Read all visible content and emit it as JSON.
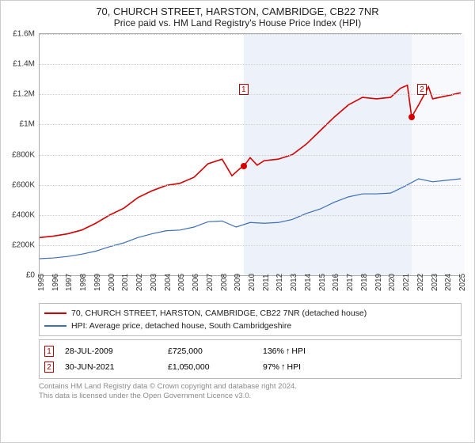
{
  "titles": {
    "line1": "70, CHURCH STREET, HARSTON, CAMBRIDGE, CB22 7NR",
    "line2": "Price paid vs. HM Land Registry's House Price Index (HPI)"
  },
  "chart": {
    "type": "line",
    "background_color": "#ffffff",
    "grid_color": "#d0d0d0",
    "shade_primary_color": "#ecf1fa",
    "shade_secondary_color": "#f7f9fd",
    "y": {
      "min": 0,
      "max": 1600000,
      "step": 200000,
      "labels": [
        "£0",
        "£200K",
        "£400K",
        "£600K",
        "£800K",
        "£1M",
        "£1.2M",
        "£1.4M",
        "£1.6M"
      ]
    },
    "x": {
      "min": 1995,
      "max": 2025,
      "labels": [
        "1995",
        "1996",
        "1997",
        "1998",
        "1999",
        "2000",
        "2001",
        "2002",
        "2003",
        "2004",
        "2005",
        "2006",
        "2007",
        "2008",
        "2009",
        "2010",
        "2011",
        "2012",
        "2013",
        "2014",
        "2015",
        "2016",
        "2017",
        "2018",
        "2019",
        "2020",
        "2021",
        "2022",
        "2023",
        "2024",
        "2025"
      ]
    },
    "shade_bands": [
      {
        "from": 2009.56,
        "to": 2021.5,
        "style": "primary"
      },
      {
        "from": 2021.5,
        "to": 2025.3,
        "style": "secondary"
      }
    ],
    "series": [
      {
        "name": "70, CHURCH STREET, HARSTON, CAMBRIDGE, CB22 7NR (detached house)",
        "color": "#d40000",
        "line_width": 1.6,
        "points": [
          [
            1995,
            250000
          ],
          [
            1996,
            260000
          ],
          [
            1997,
            275000
          ],
          [
            1998,
            300000
          ],
          [
            1999,
            345000
          ],
          [
            2000,
            400000
          ],
          [
            2001,
            445000
          ],
          [
            2002,
            515000
          ],
          [
            2003,
            560000
          ],
          [
            2004,
            595000
          ],
          [
            2005,
            610000
          ],
          [
            2006,
            650000
          ],
          [
            2007,
            740000
          ],
          [
            2008,
            770000
          ],
          [
            2008.7,
            660000
          ],
          [
            2009.3,
            710000
          ],
          [
            2009.56,
            725000
          ],
          [
            2010,
            780000
          ],
          [
            2010.5,
            730000
          ],
          [
            2011,
            760000
          ],
          [
            2012,
            770000
          ],
          [
            2013,
            800000
          ],
          [
            2014,
            870000
          ],
          [
            2015,
            960000
          ],
          [
            2016,
            1050000
          ],
          [
            2017,
            1130000
          ],
          [
            2018,
            1180000
          ],
          [
            2019,
            1170000
          ],
          [
            2020,
            1180000
          ],
          [
            2020.7,
            1240000
          ],
          [
            2021.2,
            1260000
          ],
          [
            2021.5,
            1050000
          ],
          [
            2022,
            1130000
          ],
          [
            2022.7,
            1250000
          ],
          [
            2023,
            1170000
          ],
          [
            2024,
            1190000
          ],
          [
            2025,
            1210000
          ]
        ]
      },
      {
        "name": "HPI: Average price, detached house, South Cambridgeshire",
        "color": "#3b6fb6",
        "line_width": 1.2,
        "points": [
          [
            1995,
            110000
          ],
          [
            1996,
            115000
          ],
          [
            1997,
            125000
          ],
          [
            1998,
            140000
          ],
          [
            1999,
            160000
          ],
          [
            2000,
            190000
          ],
          [
            2001,
            215000
          ],
          [
            2002,
            250000
          ],
          [
            2003,
            275000
          ],
          [
            2004,
            295000
          ],
          [
            2005,
            300000
          ],
          [
            2006,
            320000
          ],
          [
            2007,
            355000
          ],
          [
            2008,
            360000
          ],
          [
            2009,
            320000
          ],
          [
            2010,
            350000
          ],
          [
            2011,
            345000
          ],
          [
            2012,
            350000
          ],
          [
            2013,
            370000
          ],
          [
            2014,
            410000
          ],
          [
            2015,
            440000
          ],
          [
            2016,
            485000
          ],
          [
            2017,
            520000
          ],
          [
            2018,
            540000
          ],
          [
            2019,
            540000
          ],
          [
            2020,
            545000
          ],
          [
            2021,
            590000
          ],
          [
            2022,
            640000
          ],
          [
            2023,
            620000
          ],
          [
            2024,
            630000
          ],
          [
            2025,
            640000
          ]
        ]
      }
    ],
    "sale_markers": [
      {
        "n": 1,
        "x": 2009.56,
        "y": 725000,
        "dot_color": "#d40000",
        "box_x": 2009.2,
        "box_y": 1270000
      },
      {
        "n": 2,
        "x": 2021.5,
        "y": 1050000,
        "dot_color": "#d40000",
        "box_x": 2021.9,
        "box_y": 1270000
      }
    ]
  },
  "legend": {
    "rows": [
      {
        "color": "#d40000",
        "text": "70, CHURCH STREET, HARSTON, CAMBRIDGE, CB22 7NR (detached house)"
      },
      {
        "color": "#3b6fb6",
        "text": "HPI: Average price, detached house, South Cambridgeshire"
      }
    ]
  },
  "sales_table": {
    "hpi_label": "HPI",
    "rows": [
      {
        "n": 1,
        "date": "28-JUL-2009",
        "price": "£725,000",
        "pct": "136% ",
        "arrow": "↑"
      },
      {
        "n": 2,
        "date": "30-JUN-2021",
        "price": "£1,050,000",
        "pct": "97% ",
        "arrow": "↑"
      }
    ]
  },
  "footer": {
    "line1": "Contains HM Land Registry data © Crown copyright and database right 2024.",
    "line2": "This data is licensed under the Open Government Licence v3.0."
  }
}
